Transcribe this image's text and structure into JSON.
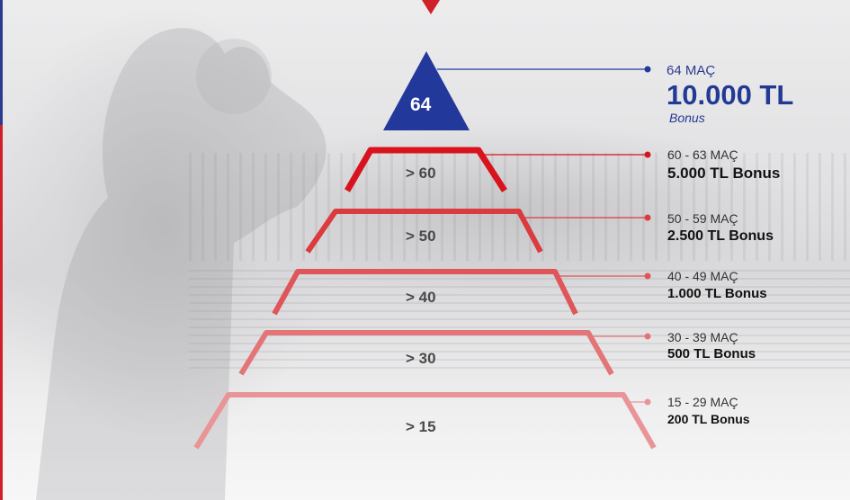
{
  "colors": {
    "navy": "#22389a",
    "tier_colors": [
      "#d8131d",
      "#db3a3e",
      "#df5559",
      "#e37478",
      "#e99598"
    ]
  },
  "top": {
    "label": "64",
    "range": "64 MAÇ",
    "amount": "10.000 TL",
    "note": "Bonus"
  },
  "tiers": [
    {
      "step": "> 60",
      "range": "60 - 63 MAÇ",
      "amount": "5.000 TL Bonus"
    },
    {
      "step": "> 50",
      "range": "50 - 59 MAÇ",
      "amount": "2.500 TL Bonus"
    },
    {
      "step": "> 40",
      "range": "40 - 49 MAÇ",
      "amount": "1.000 TL Bonus"
    },
    {
      "step": "> 30",
      "range": "30 - 39 MAÇ",
      "amount": "500 TL Bonus"
    },
    {
      "step": "> 15",
      "range": "15 - 29 MAÇ",
      "amount": "200 TL Bonus"
    }
  ]
}
